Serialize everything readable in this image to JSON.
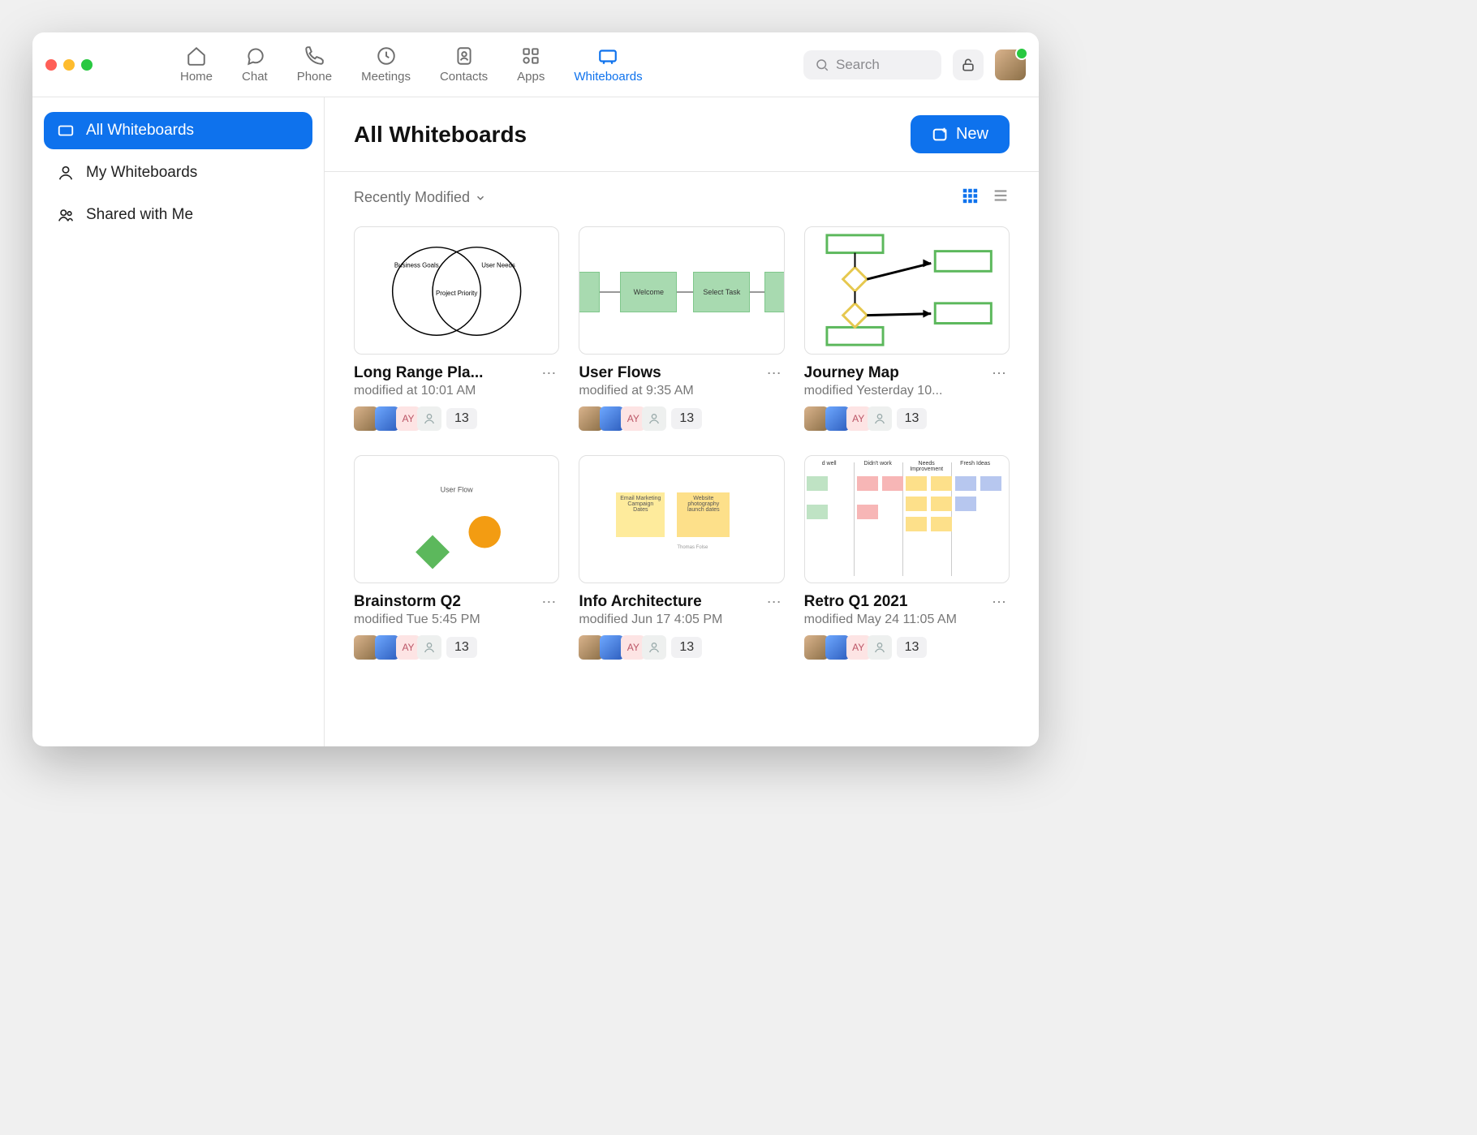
{
  "nav": {
    "tabs": [
      "Home",
      "Chat",
      "Phone",
      "Meetings",
      "Contacts",
      "Apps",
      "Whiteboards"
    ],
    "activeIndex": 6,
    "search_placeholder": "Search"
  },
  "sidebar": {
    "items": [
      {
        "label": "All Whiteboards"
      },
      {
        "label": "My Whiteboards"
      },
      {
        "label": "Shared with Me"
      }
    ],
    "activeIndex": 0
  },
  "page": {
    "title": "All Whiteboards",
    "new_label": "New",
    "sort_label": "Recently Modified"
  },
  "cards": [
    {
      "title": "Long Range Pla...",
      "subtitle": "modified at 10:01 AM",
      "count": "13",
      "collab3": "AY",
      "thumb": "venn",
      "venn_labels": {
        "left": "Business Goals",
        "right": "User Needs",
        "center": "Project Priority"
      }
    },
    {
      "title": "User Flows",
      "subtitle": "modified at 9:35 AM",
      "count": "13",
      "collab3": "AY",
      "thumb": "flow",
      "flow_labels": {
        "a": "Welcome",
        "b": "Select Task"
      }
    },
    {
      "title": "Journey Map",
      "subtitle": "modified Yesterday 10...",
      "count": "13",
      "collab3": "AY",
      "thumb": "journey"
    },
    {
      "title": "Brainstorm Q2",
      "subtitle": "modified Tue 5:45 PM",
      "count": "13",
      "collab3": "AY",
      "thumb": "brainstorm",
      "bs_label": "User Flow"
    },
    {
      "title": "Info Architecture",
      "subtitle": "modified Jun 17 4:05 PM",
      "count": "13",
      "collab3": "AY",
      "thumb": "info",
      "info_labels": {
        "a": "Email Marketing Campaign Dates",
        "b": "Website photography launch dates"
      }
    },
    {
      "title": "Retro Q1 2021",
      "subtitle": "modified May 24 11:05 AM",
      "count": "13",
      "collab3": "AY",
      "thumb": "retro",
      "retro_heads": [
        "d well",
        "Didn't work",
        "Needs Improvement",
        "Fresh Ideas"
      ]
    }
  ],
  "colors": {
    "primary": "#0e72ed",
    "green_box": "#a8dab0",
    "sticky": "#feeb9c",
    "orange": "#f39c12",
    "green_diamond": "#5cb85c"
  }
}
